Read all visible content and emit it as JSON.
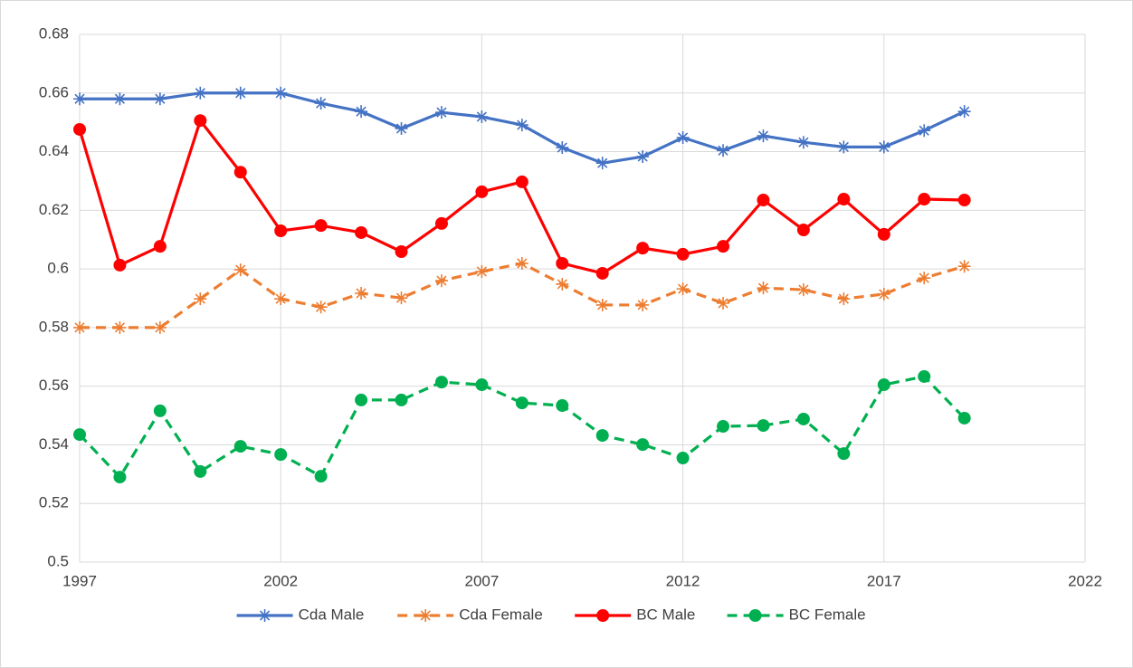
{
  "chart_data": {
    "type": "line",
    "x": [
      1997,
      1998,
      1999,
      2000,
      2001,
      2002,
      2003,
      2004,
      2005,
      2006,
      2007,
      2008,
      2009,
      2010,
      2011,
      2012,
      2013,
      2014,
      2015,
      2016,
      2017,
      2018,
      2019
    ],
    "series": [
      {
        "name": "Cda Male",
        "color": "#4472c4",
        "dash": false,
        "marker": "star",
        "values": [
          0.658,
          0.658,
          0.658,
          0.66,
          0.66,
          0.66,
          0.6565,
          0.6537,
          0.6479,
          0.6534,
          0.6519,
          0.6491,
          0.6414,
          0.6361,
          0.6383,
          0.6448,
          0.6404,
          0.6454,
          0.6432,
          0.6416,
          0.6416,
          0.6472,
          0.6537
        ]
      },
      {
        "name": "Cda Female",
        "color": "#ed7d31",
        "dash": true,
        "marker": "star",
        "values": [
          0.58,
          0.58,
          0.58,
          0.5898,
          0.5997,
          0.5898,
          0.587,
          0.5917,
          0.5901,
          0.596,
          0.5991,
          0.6019,
          0.5948,
          0.5877,
          0.5877,
          0.5932,
          0.5883,
          0.5935,
          0.5929,
          0.5898,
          0.5914,
          0.5969,
          0.6009
        ]
      },
      {
        "name": "BC Male",
        "color": "#ff0000",
        "dash": false,
        "marker": "circle",
        "values": [
          0.6476,
          0.6013,
          0.6077,
          0.6506,
          0.633,
          0.613,
          0.6148,
          0.6124,
          0.6059,
          0.6155,
          0.6263,
          0.6297,
          0.6019,
          0.5985,
          0.6071,
          0.605,
          0.6077,
          0.6235,
          0.6133,
          0.6238,
          0.6118,
          0.6238,
          0.6235
        ]
      },
      {
        "name": "BC Female",
        "color": "#00b050",
        "dash": true,
        "marker": "circle",
        "values": [
          0.5435,
          0.529,
          0.5516,
          0.5309,
          0.5395,
          0.5367,
          0.5293,
          0.5553,
          0.5553,
          0.5614,
          0.5605,
          0.5543,
          0.5534,
          0.5432,
          0.5401,
          0.5355,
          0.5463,
          0.5466,
          0.5488,
          0.537,
          0.5605,
          0.5633,
          0.5491
        ]
      }
    ],
    "xlim": [
      1997,
      2022
    ],
    "xticks": [
      1997,
      2002,
      2007,
      2012,
      2017,
      2022
    ],
    "ylim": [
      0.5,
      0.68
    ],
    "yticks": [
      0.5,
      0.52,
      0.54,
      0.56,
      0.58,
      0.6,
      0.62,
      0.64,
      0.66,
      0.68
    ],
    "grid": true,
    "legend": "bottom"
  }
}
